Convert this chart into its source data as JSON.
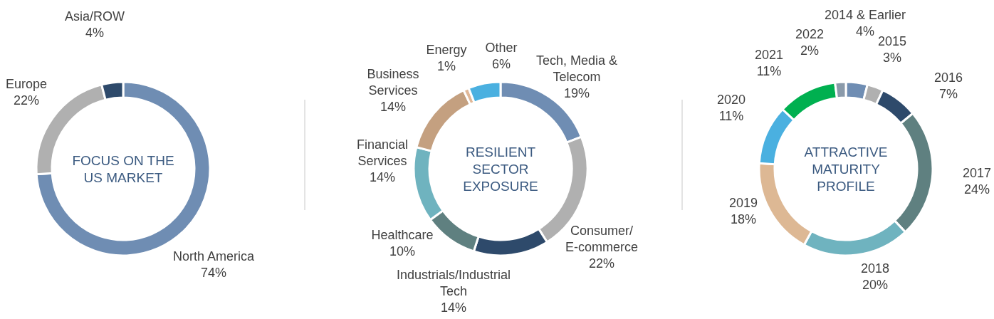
{
  "chart_data": [
    {
      "type": "donut",
      "title": "FOCUS ON THE\nUS MARKET",
      "categories": [
        "North America",
        "Europe",
        "Asia/ROW"
      ],
      "values": [
        74,
        22,
        4
      ],
      "value_labels": [
        "74%",
        "22%",
        "4%"
      ],
      "colors": [
        "#6f8db3",
        "#b0b0b0",
        "#2e4a6b"
      ]
    },
    {
      "type": "donut",
      "title": "RESILIENT\nSECTOR\nEXPOSURE",
      "categories": [
        "Tech, Media &\nTelecom",
        "Consumer/\nE-commerce",
        "Industrials/Industrial\nTech",
        "Healthcare",
        "Financial\nServices",
        "Business\nServices",
        "Energy",
        "Other"
      ],
      "values": [
        19,
        22,
        14,
        10,
        14,
        14,
        1,
        6
      ],
      "value_labels": [
        "19%",
        "22%",
        "14%",
        "10%",
        "14%",
        "14%",
        "1%",
        "6%"
      ],
      "colors": [
        "#6f8db3",
        "#b0b0b0",
        "#2e4a6b",
        "#5f8080",
        "#6fb3bf",
        "#c4a080",
        "#e0b898",
        "#4ab0e0"
      ]
    },
    {
      "type": "donut",
      "title": "ATTRACTIVE\nMATURITY\nPROFILE",
      "categories": [
        "2014 & Earlier",
        "2015",
        "2016",
        "2017",
        "2018",
        "2019",
        "2020",
        "2021",
        "2022"
      ],
      "values": [
        4,
        3,
        7,
        24,
        20,
        18,
        11,
        11,
        2
      ],
      "value_labels": [
        "4%",
        "3%",
        "7%",
        "24%",
        "20%",
        "18%",
        "11%",
        "11%",
        "2%"
      ],
      "colors": [
        "#6f8db3",
        "#b0b0b0",
        "#2e4a6b",
        "#5f8080",
        "#6fb3bf",
        "#ddb894",
        "#4ab0e0",
        "#00b050",
        "#8a9aaa"
      ]
    }
  ]
}
